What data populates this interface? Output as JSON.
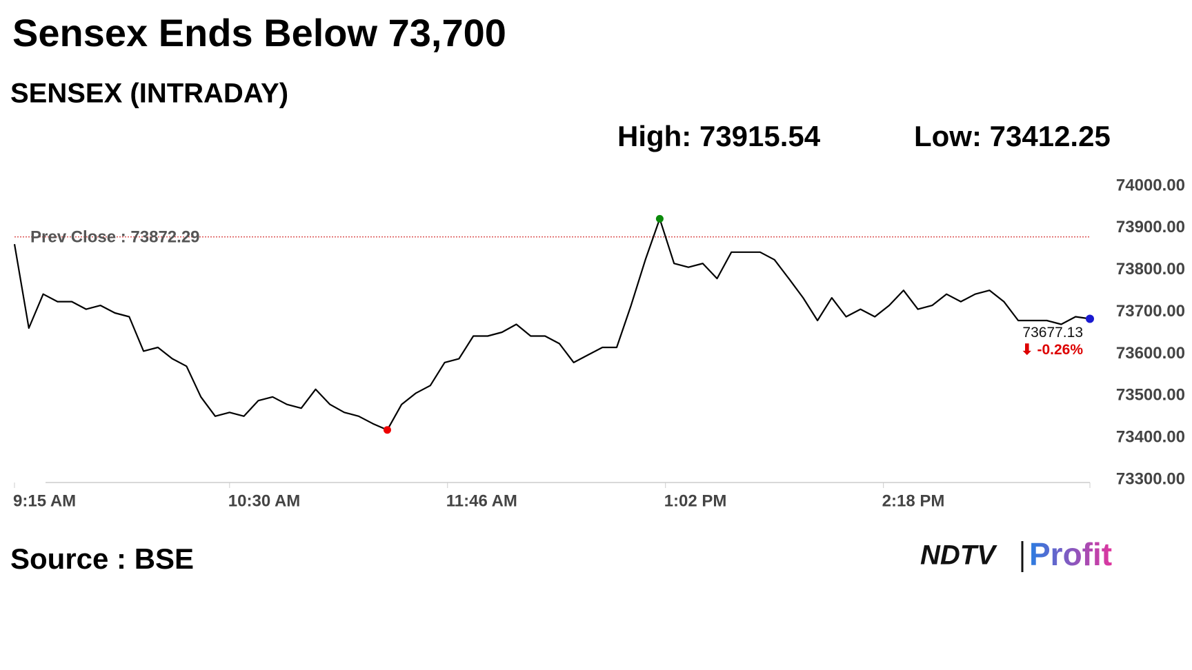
{
  "chart_data": {
    "type": "line",
    "title": "Sensex Ends Below 73,700",
    "subtitle": "SENSEX (INTRADAY)",
    "high_label": "High:",
    "high": 73915.54,
    "low_label": "Low:",
    "low": 73412.25,
    "prev_close_label": "Prev Close :",
    "prev_close": 73872.29,
    "last": 73677.13,
    "change": "⬇ -0.26%",
    "source": "Source : BSE",
    "logo": [
      "NDTV",
      "Profit"
    ],
    "x": [
      "9:15 AM",
      "9:20 AM",
      "9:25 AM",
      "9:30 AM",
      "9:35 AM",
      "9:40 AM",
      "9:45 AM",
      "9:50 AM",
      "9:55 AM",
      "10:00 AM",
      "10:05 AM",
      "10:10 AM",
      "10:15 AM",
      "10:20 AM",
      "10:25 AM",
      "10:30 AM",
      "10:35 AM",
      "10:40 AM",
      "10:45 AM",
      "10:50 AM",
      "10:55 AM",
      "11:00 AM",
      "11:05 AM",
      "11:10 AM",
      "11:15 AM",
      "11:20 AM",
      "11:25 AM",
      "11:30 AM",
      "11:35 AM",
      "11:40 AM",
      "11:45 AM",
      "11:50 AM",
      "11:55 AM",
      "12:00 PM",
      "12:05 PM",
      "12:10 PM",
      "12:15 PM",
      "12:20 PM",
      "12:25 PM",
      "12:30 PM",
      "12:35 PM",
      "12:40 PM",
      "12:45 PM",
      "12:50 PM",
      "12:55 PM",
      "1:00 PM",
      "1:05 PM",
      "1:10 PM",
      "1:15 PM",
      "1:20 PM",
      "1:25 PM",
      "1:30 PM",
      "1:35 PM",
      "1:40 PM",
      "1:45 PM",
      "1:50 PM",
      "1:55 PM",
      "2:00 PM",
      "2:05 PM",
      "2:10 PM",
      "2:15 PM",
      "2:20 PM",
      "2:25 PM",
      "2:30 PM",
      "2:35 PM",
      "2:40 PM",
      "2:45 PM",
      "2:50 PM",
      "2:55 PM",
      "3:00 PM",
      "3:05 PM",
      "3:10 PM",
      "3:15 PM",
      "3:20 PM",
      "3:25 PM",
      "3:30 PM"
    ],
    "series": [
      {
        "color": "#000000",
        "values": [
          73855,
          73655,
          73736,
          73718,
          73718,
          73700,
          73709,
          73691,
          73682,
          73600,
          73609,
          73582,
          73564,
          73491,
          73445,
          73454,
          73445,
          73482,
          73491,
          73473,
          73464,
          73509,
          73473,
          73454,
          73445,
          73427,
          73412.25,
          73473,
          73500,
          73518,
          73573,
          73582,
          73636,
          73636,
          73645,
          73664,
          73636,
          73636,
          73618,
          73573,
          73591,
          73609,
          73609,
          73709,
          73818,
          73915.54,
          73809,
          73800,
          73809,
          73773,
          73836,
          73836,
          73836,
          73818,
          73773,
          73727,
          73673,
          73727,
          73682,
          73700,
          73682,
          73709,
          73745,
          73700,
          73709,
          73736,
          73718,
          73736,
          73745,
          73718,
          73673,
          73673,
          73673,
          73664,
          73682,
          73677.13
        ]
      }
    ],
    "xlim": [
      "9:15 AM",
      "3:30 PM"
    ],
    "xticks": [
      "9:15 AM",
      "10:30 AM",
      "11:46 AM",
      "1:02 PM",
      "2:18 PM"
    ],
    "ylim": [
      73300,
      74000
    ],
    "yticks": [
      {
        "value": 73300,
        "label": "73300.00"
      },
      {
        "value": 73400,
        "label": "73400.00"
      },
      {
        "value": 73500,
        "label": "73500.00"
      },
      {
        "value": 73600,
        "label": "73600.00"
      },
      {
        "value": 73700,
        "label": "73700.00"
      },
      {
        "value": 73800,
        "label": "73800.00"
      },
      {
        "value": 73900,
        "label": "73900.00"
      },
      {
        "value": 74000,
        "label": "74000.00"
      }
    ]
  }
}
